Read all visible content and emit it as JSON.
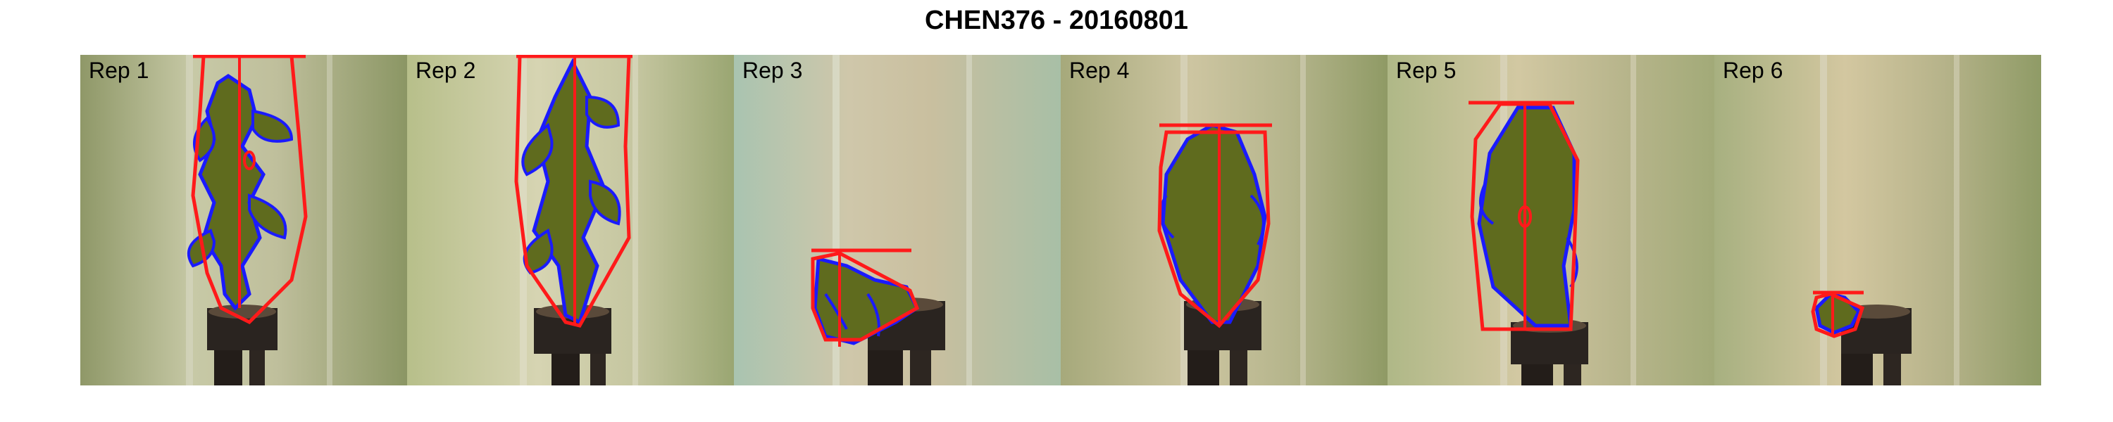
{
  "figure": {
    "title": "CHEN376 - 20160801"
  },
  "panels": [
    {
      "label": "Rep 1"
    },
    {
      "label": "Rep 2"
    },
    {
      "label": "Rep 3"
    },
    {
      "label": "Rep 4"
    },
    {
      "label": "Rep 5"
    },
    {
      "label": "Rep 6"
    }
  ],
  "colors": {
    "convex_hull": "#ff1a1a",
    "leaf_outline": "#1a1aff",
    "leaf_fill": "#5f6b1e",
    "pot": "#2a2420"
  }
}
